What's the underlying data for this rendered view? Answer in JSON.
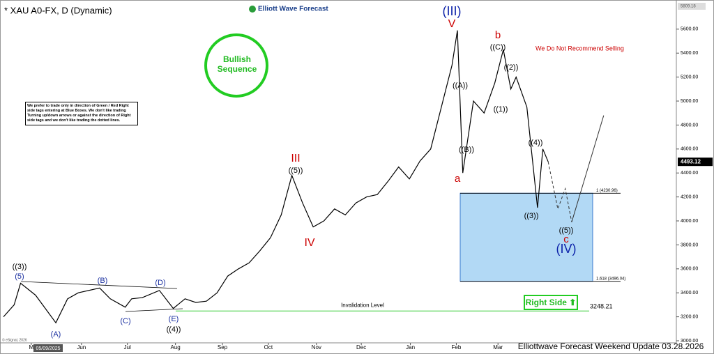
{
  "chart_data": {
    "type": "line",
    "title": "* XAU A0-FX, D (Dynamic)",
    "brand": "Elliott Wave Forecast",
    "footer": "Elliottwave Forecast Weekend  Update 03.28.2026",
    "date_label": "05/09/2025",
    "copyright": "© eSignal, 2026",
    "badge": "Bullish Sequence",
    "note": "We prefer to trade only in direction of Green / Red Right side tags entering at Blue Boxes. We don't like trading Turning up/down arrows or against the direction of Right side tags and we don't like trading the dotted lines.",
    "warning": "We Do Not Recommend Selling",
    "right_side": "Right Side ⬆",
    "xlim": [
      0,
      63
    ],
    "ylim": [
      2936,
      5820
    ],
    "xticks": [
      {
        "value": 2.6,
        "label": "M"
      },
      {
        "value": 7.3,
        "label": "Jun"
      },
      {
        "value": 11.6,
        "label": "Jul"
      },
      {
        "value": 16.1,
        "label": "Aug"
      },
      {
        "value": 20.5,
        "label": "Sep"
      },
      {
        "value": 24.8,
        "label": "Oct"
      },
      {
        "value": 29.3,
        "label": "Nov"
      },
      {
        "value": 33.5,
        "label": "Dec"
      },
      {
        "value": 38.1,
        "label": "Jan"
      },
      {
        "value": 42.4,
        "label": "Feb"
      },
      {
        "value": 46.3,
        "label": "Mar"
      }
    ],
    "yticks": [
      {
        "value": 3000,
        "label": "3000.00"
      },
      {
        "value": 3200,
        "label": "3200.00"
      },
      {
        "value": 3400,
        "label": "3400.00"
      },
      {
        "value": 3600,
        "label": "3600.00"
      },
      {
        "value": 3800,
        "label": "3800.00"
      },
      {
        "value": 4000,
        "label": "4000.00"
      },
      {
        "value": 4200,
        "label": "4200.00"
      },
      {
        "value": 4400,
        "label": "4400.00"
      },
      {
        "value": 4600,
        "label": "4600.00"
      },
      {
        "value": 4800,
        "label": "4800.00"
      },
      {
        "value": 5000,
        "label": "5000.00"
      },
      {
        "value": 5200,
        "label": "5200.00"
      },
      {
        "value": 5400,
        "label": "5400.00"
      },
      {
        "value": 5600,
        "label": "5600.00"
      }
    ],
    "series": [
      {
        "color": "#000000",
        "dash": false,
        "x": [
          0,
          1,
          1.6,
          3,
          4.9,
          6,
          7,
          9,
          10,
          11.4,
          12,
          13,
          14.6,
          15.9,
          17,
          18,
          19,
          20,
          21,
          22,
          23,
          24,
          25,
          26,
          27,
          28,
          29,
          30,
          31,
          32,
          33,
          34,
          35,
          36,
          37,
          38,
          39,
          40,
          41,
          42,
          42.5,
          43,
          44,
          45,
          46,
          46.8,
          47.5,
          48,
          49,
          50,
          50.5,
          51
        ],
        "values": [
          3200,
          3300,
          3480,
          3380,
          3150,
          3350,
          3400,
          3440,
          3350,
          3280,
          3350,
          3360,
          3420,
          3270,
          3350,
          3320,
          3330,
          3400,
          3540,
          3600,
          3650,
          3750,
          3860,
          4050,
          4380,
          4150,
          3950,
          4000,
          4100,
          4050,
          4150,
          4200,
          4220,
          4330,
          4450,
          4350,
          4500,
          4600,
          4950,
          5300,
          5590,
          4400,
          5000,
          4900,
          5150,
          5430,
          5100,
          5200,
          4950,
          4110,
          4600,
          4493
        ]
      },
      {
        "color": "#333333",
        "dash": true,
        "x": [
          51,
          51.9,
          52.6,
          53.2
        ],
        "values": [
          4493,
          4100,
          4270,
          3990
        ]
      },
      {
        "color": "#333333",
        "dash": false,
        "x": [
          53.2,
          56.2
        ],
        "values": [
          3990,
          4880
        ]
      }
    ],
    "fib_levels": [
      {
        "value": 4230.96,
        "label": "1 (4230.96)"
      },
      {
        "value": 3496.04,
        "label": "1.618 (3496.04)"
      }
    ],
    "invalidation": {
      "value": 3248.21,
      "label": "3248.21",
      "text": "Invalidation Level"
    },
    "last_price": {
      "value": 4493.12,
      "label": "4493.12"
    },
    "top_price": {
      "value": 5809.18,
      "label": "5809.18"
    },
    "wave_labels": [
      {
        "text": "((3))",
        "color": "#000000"
      },
      {
        "text": "(5)",
        "color": "#1a2fa0"
      },
      {
        "text": "(A)",
        "color": "#1a2fa0"
      },
      {
        "text": "(B)",
        "color": "#1a2fa0"
      },
      {
        "text": "(C)",
        "color": "#1a2fa0"
      },
      {
        "text": "(D)",
        "color": "#1a2fa0"
      },
      {
        "text": "(E)",
        "color": "#1a2fa0"
      },
      {
        "text": "((4))",
        "color": "#000000"
      },
      {
        "text": "III",
        "color": "#cc0000"
      },
      {
        "text": "((5))",
        "color": "#000000"
      },
      {
        "text": "IV",
        "color": "#cc0000"
      },
      {
        "text": "(III)",
        "color": "#0a1fa8"
      },
      {
        "text": "V",
        "color": "#cc0000"
      },
      {
        "text": "a",
        "color": "#cc0000"
      },
      {
        "text": "((A))",
        "color": "#000000"
      },
      {
        "text": "((B))",
        "color": "#000000"
      },
      {
        "text": "b",
        "color": "#cc0000"
      },
      {
        "text": "((C))",
        "color": "#000000"
      },
      {
        "text": "((2))",
        "color": "#000000"
      },
      {
        "text": "((1))",
        "color": "#000000"
      },
      {
        "text": "((4))",
        "color": "#000000"
      },
      {
        "text": "((3))",
        "color": "#000000"
      },
      {
        "text": "((5))",
        "color": "#000000"
      },
      {
        "text": "c",
        "color": "#cc0000"
      },
      {
        "text": "(IV)",
        "color": "#0a1fa8"
      }
    ]
  }
}
